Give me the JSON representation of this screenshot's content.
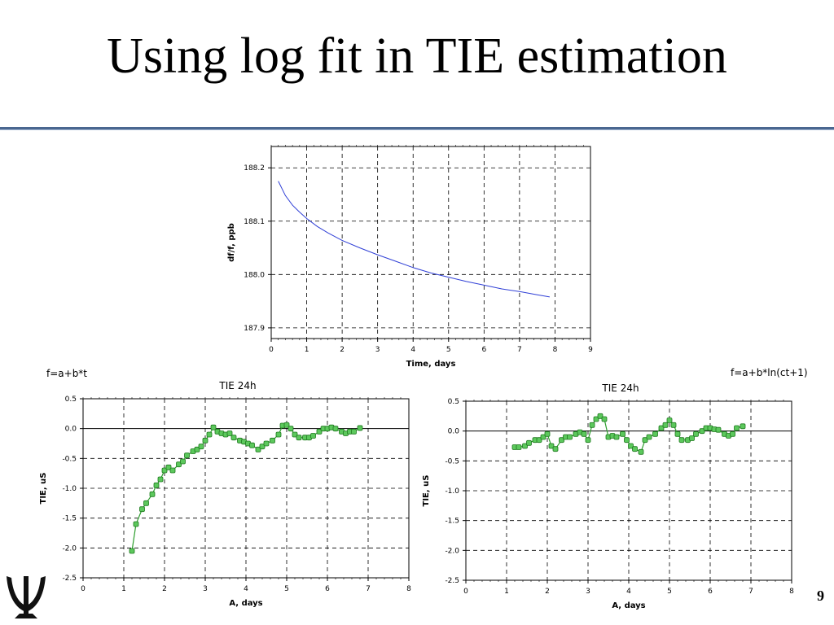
{
  "slide": {
    "title": "Using log fit in TIE estimation",
    "page_number": "9",
    "left_formula": "f=a+b*t",
    "right_formula": "f=a+b*ln(ct+1)",
    "logo_icon": "trident-logo-icon"
  },
  "chart_data": [
    {
      "type": "line",
      "title": "",
      "xlabel": "Time, days",
      "ylabel": "df/f, ppb",
      "xlim": [
        0,
        9
      ],
      "ylim": [
        187.88,
        188.24
      ],
      "xticks": [
        "0",
        "1",
        "2",
        "3",
        "4",
        "5",
        "6",
        "7",
        "8",
        "9"
      ],
      "yticks": [
        "187.9",
        "188.0",
        "188.1",
        "188.2"
      ],
      "grid": true,
      "line_color": "#2f3fd6",
      "series": [
        {
          "x": [
            0.2,
            0.4,
            0.6,
            0.8,
            1.0,
            1.3,
            1.6,
            2.0,
            2.5,
            3.0,
            3.5,
            4.0,
            4.5,
            5.0,
            5.5,
            6.0,
            6.5,
            7.0,
            7.5,
            7.85
          ],
          "values": [
            188.175,
            188.148,
            188.13,
            188.117,
            188.105,
            188.09,
            188.078,
            188.064,
            188.05,
            188.037,
            188.025,
            188.013,
            188.003,
            187.995,
            187.987,
            187.98,
            187.973,
            187.968,
            187.962,
            187.958
          ]
        }
      ]
    },
    {
      "type": "line",
      "title": "TIE 24h",
      "xlabel": "A, days",
      "ylabel": "TIE, uS",
      "xlim": [
        0,
        8
      ],
      "ylim": [
        -2.5,
        0.5
      ],
      "xticks": [
        "0",
        "1",
        "2",
        "3",
        "4",
        "5",
        "6",
        "7",
        "8"
      ],
      "yticks": [
        "-2.5",
        "-2.0",
        "-1.5",
        "-1.0",
        "-0.5",
        "0.0",
        "0.5"
      ],
      "grid": true,
      "line_color": "#2f9e2f",
      "marker_color": "#5cc85c",
      "series": [
        {
          "x": [
            1.2,
            1.3,
            1.45,
            1.55,
            1.7,
            1.8,
            1.9,
            2.0,
            2.1,
            2.2,
            2.35,
            2.45,
            2.55,
            2.7,
            2.8,
            2.9,
            3.0,
            3.1,
            3.2,
            3.3,
            3.4,
            3.5,
            3.6,
            3.7,
            3.85,
            3.95,
            4.05,
            4.15,
            4.3,
            4.4,
            4.5,
            4.65,
            4.8,
            4.9,
            5.0,
            5.1,
            5.2,
            5.3,
            5.45,
            5.55,
            5.65,
            5.8,
            5.9,
            6.0,
            6.1,
            6.2,
            6.35,
            6.45,
            6.55,
            6.65,
            6.8
          ],
          "values": [
            -2.05,
            -1.6,
            -1.35,
            -1.25,
            -1.1,
            -0.95,
            -0.85,
            -0.7,
            -0.65,
            -0.7,
            -0.6,
            -0.55,
            -0.45,
            -0.38,
            -0.35,
            -0.3,
            -0.2,
            -0.1,
            0.02,
            -0.05,
            -0.08,
            -0.1,
            -0.08,
            -0.15,
            -0.2,
            -0.22,
            -0.25,
            -0.28,
            -0.35,
            -0.3,
            -0.25,
            -0.2,
            -0.1,
            0.05,
            0.06,
            0.0,
            -0.1,
            -0.15,
            -0.15,
            -0.15,
            -0.12,
            -0.05,
            0.0,
            0.0,
            0.02,
            0.0,
            -0.05,
            -0.08,
            -0.05,
            -0.05,
            0.01
          ]
        }
      ]
    },
    {
      "type": "line",
      "title": "TIE 24h",
      "xlabel": "A, days",
      "ylabel": "TIE, uS",
      "xlim": [
        0,
        8
      ],
      "ylim": [
        -2.5,
        0.5
      ],
      "xticks": [
        "0",
        "1",
        "2",
        "3",
        "4",
        "5",
        "6",
        "7",
        "8"
      ],
      "yticks": [
        "-2.5",
        "-2.0",
        "-1.5",
        "-1.0",
        "-0.5",
        "0.0",
        "0.5"
      ],
      "grid": true,
      "line_color": "#2f9e2f",
      "marker_color": "#5cc85c",
      "series": [
        {
          "x": [
            1.2,
            1.3,
            1.45,
            1.55,
            1.7,
            1.8,
            1.9,
            2.0,
            2.1,
            2.2,
            2.35,
            2.45,
            2.55,
            2.7,
            2.8,
            2.9,
            3.0,
            3.1,
            3.2,
            3.3,
            3.4,
            3.5,
            3.6,
            3.7,
            3.85,
            3.95,
            4.05,
            4.15,
            4.3,
            4.4,
            4.5,
            4.65,
            4.8,
            4.9,
            5.0,
            5.1,
            5.2,
            5.3,
            5.45,
            5.55,
            5.65,
            5.8,
            5.9,
            6.0,
            6.1,
            6.2,
            6.35,
            6.45,
            6.55,
            6.65,
            6.8
          ],
          "values": [
            -0.27,
            -0.27,
            -0.25,
            -0.2,
            -0.15,
            -0.15,
            -0.1,
            -0.05,
            -0.25,
            -0.3,
            -0.15,
            -0.1,
            -0.1,
            -0.05,
            -0.02,
            -0.05,
            -0.15,
            0.1,
            0.2,
            0.25,
            0.2,
            -0.1,
            -0.08,
            -0.1,
            -0.05,
            -0.15,
            -0.25,
            -0.3,
            -0.35,
            -0.15,
            -0.1,
            -0.05,
            0.05,
            0.1,
            0.18,
            0.1,
            -0.05,
            -0.15,
            -0.15,
            -0.12,
            -0.05,
            0.0,
            0.05,
            0.05,
            0.03,
            0.02,
            -0.05,
            -0.08,
            -0.05,
            0.05,
            0.08
          ]
        }
      ]
    }
  ]
}
